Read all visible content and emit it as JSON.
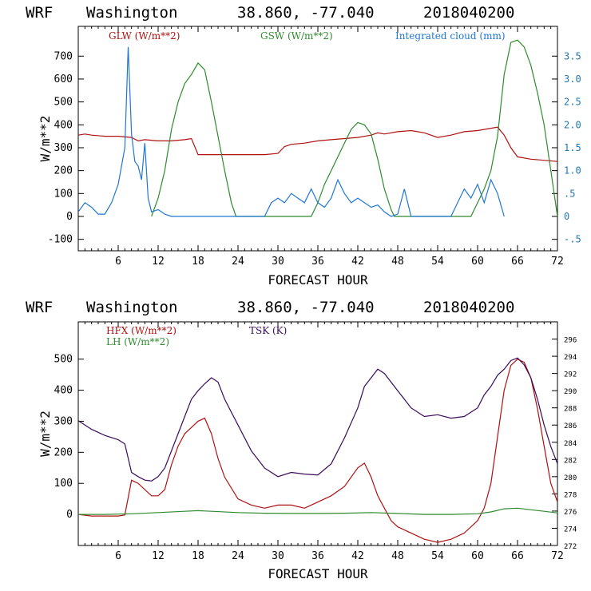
{
  "chart_data": [
    {
      "type": "line",
      "header": {
        "model": "WRF",
        "location": "Washington",
        "coords": "38.860, -77.040",
        "run": "2018040200"
      },
      "xlabel": "FORECAST HOUR",
      "ylabel": "W/m**2",
      "xlim": [
        0,
        72
      ],
      "xticks": [
        "6",
        "12",
        "18",
        "24",
        "30",
        "36",
        "42",
        "48",
        "54",
        "60",
        "66",
        "72"
      ],
      "ylim": [
        -150,
        830
      ],
      "yticks": [
        "-100",
        "0",
        "100",
        "200",
        "300",
        "400",
        "500",
        "600",
        "700"
      ],
      "y2lim": [
        -0.75,
        4.15
      ],
      "y2ticks": [
        "-.5",
        "0",
        ".5",
        "1.0",
        "1.5",
        "2.0",
        "2.5",
        "3.0",
        "3.5"
      ],
      "series": [
        {
          "name": "GLW (W/m**2)",
          "color": "#b01010",
          "axis": "left",
          "x": [
            0,
            1,
            2,
            4,
            6,
            8,
            9,
            10,
            12,
            14,
            16,
            17,
            18,
            24,
            26,
            28,
            30,
            31,
            32,
            34,
            36,
            38,
            40,
            42,
            44,
            45,
            46,
            48,
            50,
            52,
            54,
            56,
            58,
            60,
            62,
            63,
            64,
            65,
            66,
            68,
            70,
            72
          ],
          "values": [
            355,
            360,
            355,
            350,
            350,
            345,
            330,
            335,
            330,
            330,
            335,
            340,
            270,
            270,
            270,
            270,
            275,
            305,
            315,
            320,
            330,
            335,
            340,
            345,
            355,
            365,
            360,
            370,
            375,
            365,
            345,
            355,
            370,
            375,
            385,
            390,
            355,
            300,
            260,
            250,
            245,
            240
          ]
        },
        {
          "name": "GSW (W/m**2)",
          "color": "#2e8b2e",
          "axis": "left",
          "x": [
            11,
            12,
            13,
            14,
            15,
            16,
            17,
            18,
            19,
            20,
            21,
            22,
            23,
            23.7,
            35,
            36,
            37,
            38,
            39,
            40,
            41,
            42,
            43,
            44,
            45,
            46,
            47,
            47.5,
            59,
            60,
            61,
            62,
            63,
            64,
            65,
            66,
            67,
            68,
            69,
            70,
            71,
            72
          ],
          "values": [
            0,
            80,
            200,
            380,
            500,
            580,
            620,
            670,
            640,
            500,
            350,
            200,
            60,
            0,
            0,
            60,
            140,
            200,
            260,
            320,
            380,
            410,
            400,
            360,
            250,
            120,
            30,
            0,
            0,
            60,
            120,
            200,
            350,
            620,
            760,
            770,
            740,
            660,
            540,
            400,
            200,
            0
          ]
        },
        {
          "name": "Integrated cloud (mm)",
          "color": "#1f77d4",
          "axis": "right",
          "x": [
            0,
            1,
            2,
            3,
            4,
            5,
            6,
            7,
            7.5,
            8,
            8.5,
            9,
            9.5,
            10,
            10.5,
            11,
            12,
            13,
            14,
            28,
            29,
            30,
            31,
            32,
            33,
            34,
            35,
            36,
            37,
            38,
            39,
            40,
            41,
            42,
            43,
            44,
            45,
            46,
            47,
            48,
            49,
            50,
            56,
            57,
            58,
            59,
            60,
            61,
            62,
            63,
            64
          ],
          "values": [
            0.1,
            0.3,
            0.2,
            0.05,
            0.05,
            0.3,
            0.7,
            1.5,
            3.7,
            1.8,
            1.2,
            1.1,
            0.8,
            1.6,
            0.4,
            0.1,
            0.15,
            0.05,
            0.0,
            0.0,
            0.3,
            0.4,
            0.3,
            0.5,
            0.4,
            0.3,
            0.6,
            0.3,
            0.2,
            0.4,
            0.8,
            0.5,
            0.3,
            0.4,
            0.3,
            0.2,
            0.25,
            0.1,
            0.0,
            0.05,
            0.6,
            0.0,
            0.0,
            0.3,
            0.6,
            0.4,
            0.7,
            0.3,
            0.8,
            0.5,
            0.0
          ]
        }
      ]
    },
    {
      "type": "line",
      "header": {
        "model": "WRF",
        "location": "Washington",
        "coords": "38.860, -77.040",
        "run": "2018040200"
      },
      "xlabel": "FORECAST HOUR",
      "ylabel": "W/m**2",
      "xlim": [
        0,
        72
      ],
      "xticks": [
        "6",
        "12",
        "18",
        "24",
        "30",
        "36",
        "42",
        "48",
        "54",
        "60",
        "66",
        "72"
      ],
      "ylim": [
        -100,
        620
      ],
      "yticks": [
        "0",
        "100",
        "200",
        "300",
        "400",
        "500"
      ],
      "y2lim": [
        272,
        298
      ],
      "y2ticks": [
        "272",
        "274",
        "276",
        "278",
        "280",
        "282",
        "284",
        "286",
        "288",
        "290",
        "292",
        "294",
        "296"
      ],
      "series": [
        {
          "name": "HFX (W/m**2)",
          "color": "#b01010",
          "axis": "left",
          "x": [
            0,
            2,
            4,
            6,
            7,
            8,
            9,
            10,
            11,
            12,
            13,
            14,
            15,
            16,
            17,
            18,
            19,
            20,
            21,
            22,
            24,
            26,
            28,
            30,
            32,
            34,
            36,
            38,
            40,
            42,
            43,
            44,
            45,
            46,
            47,
            48,
            50,
            52,
            54,
            56,
            58,
            60,
            61,
            62,
            63,
            64,
            65,
            66,
            67,
            68,
            69,
            70,
            71,
            72
          ],
          "values": [
            0,
            -5,
            -5,
            -5,
            -2,
            110,
            100,
            80,
            60,
            60,
            80,
            160,
            220,
            260,
            280,
            300,
            310,
            260,
            180,
            120,
            50,
            30,
            20,
            30,
            30,
            20,
            40,
            60,
            90,
            150,
            165,
            120,
            60,
            20,
            -20,
            -40,
            -60,
            -80,
            -90,
            -80,
            -60,
            -20,
            20,
            100,
            250,
            400,
            480,
            500,
            490,
            440,
            340,
            220,
            100,
            40
          ]
        },
        {
          "name": "LH (W/m**2)",
          "color": "#2e8b2e",
          "axis": "left",
          "x": [
            0,
            4,
            8,
            12,
            16,
            18,
            20,
            24,
            28,
            32,
            36,
            40,
            44,
            48,
            52,
            56,
            60,
            62,
            64,
            66,
            68,
            70,
            72
          ],
          "values": [
            0,
            0,
            2,
            6,
            10,
            12,
            10,
            6,
            4,
            3,
            3,
            4,
            6,
            3,
            0,
            0,
            2,
            8,
            18,
            20,
            15,
            10,
            5
          ]
        },
        {
          "name": "TSK (K)",
          "color": "#3a0a5a",
          "axis": "right",
          "x": [
            0,
            2,
            4,
            6,
            7,
            8,
            9,
            10,
            11,
            12,
            13,
            14,
            15,
            16,
            17,
            18,
            19,
            20,
            21,
            22,
            24,
            26,
            28,
            30,
            32,
            34,
            36,
            38,
            40,
            42,
            43,
            44,
            45,
            46,
            48,
            50,
            52,
            54,
            56,
            58,
            60,
            61,
            62,
            63,
            64,
            65,
            66,
            67,
            68,
            69,
            70,
            71,
            72
          ],
          "values": [
            286.5,
            285.5,
            284.8,
            284.3,
            283.8,
            280.5,
            280.0,
            279.6,
            279.5,
            280.0,
            281.0,
            283.0,
            285.0,
            287.0,
            289.0,
            290.0,
            290.8,
            291.5,
            291.0,
            289.0,
            286.0,
            283.0,
            281.0,
            280.0,
            280.5,
            280.3,
            280.2,
            281.5,
            284.5,
            288.0,
            290.5,
            291.5,
            292.5,
            292.0,
            290.0,
            288.0,
            287.0,
            287.2,
            286.8,
            287.0,
            288.0,
            289.5,
            290.5,
            291.8,
            292.5,
            293.5,
            293.8,
            293.0,
            291.5,
            289.0,
            286.0,
            283.5,
            281.5
          ]
        }
      ]
    }
  ]
}
